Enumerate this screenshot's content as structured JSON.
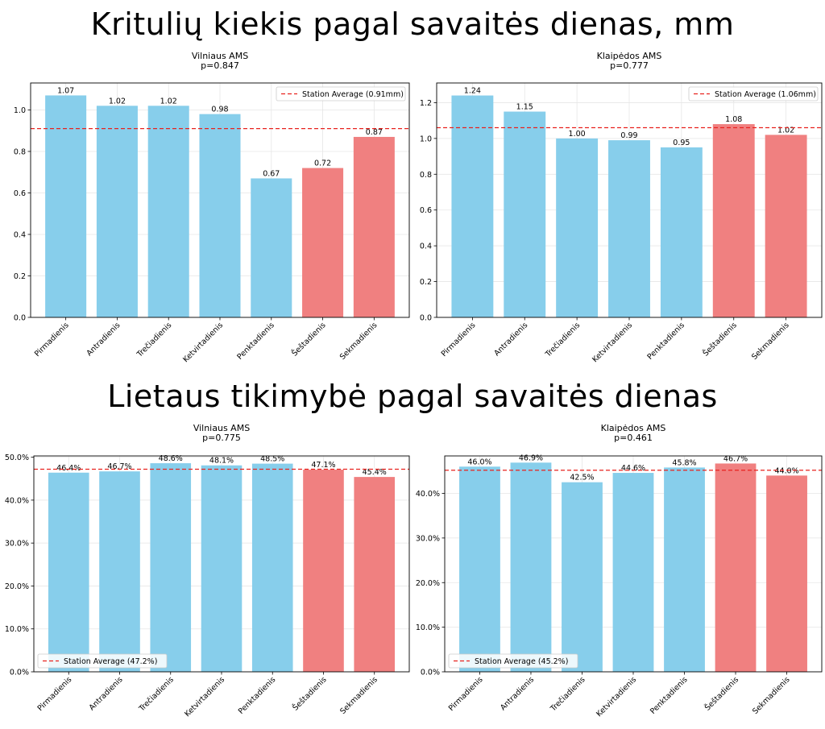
{
  "sections": [
    {
      "title": "Kritulių kiekis pagal savaitės dienas, mm"
    },
    {
      "title": "Lietaus tikimybė pagal savaitės dienas"
    }
  ],
  "colors": {
    "weekday": "#87ceeb",
    "weekend": "#f08080",
    "average_line": "#e8231f"
  },
  "chart_data": [
    {
      "type": "bar",
      "title": "Vilniaus AMS",
      "subtitle": "p=0.847",
      "categories": [
        "Pirmadienis",
        "Antradienis",
        "Trečiadienis",
        "Ketvirtadienis",
        "Penktadienis",
        "Šeštadienis",
        "Sekmadienis"
      ],
      "values": [
        1.07,
        1.02,
        1.02,
        0.98,
        0.67,
        0.72,
        0.87
      ],
      "data_labels": [
        "1.07",
        "1.02",
        "1.02",
        "0.98",
        "0.67",
        "0.72",
        "0.87"
      ],
      "weekend": [
        false,
        false,
        false,
        false,
        false,
        true,
        true
      ],
      "average": 0.91,
      "legend_label": "Station Average (0.91mm)",
      "legend_position": "top-right",
      "ylim": [
        0,
        1.13
      ],
      "yticks": [
        0,
        0.2,
        0.4,
        0.6,
        0.8,
        1.0
      ],
      "ytick_labels": [
        "0.0",
        "0.2",
        "0.4",
        "0.6",
        "0.8",
        "1.0"
      ],
      "grid": true
    },
    {
      "type": "bar",
      "title": "Klaipėdos AMS",
      "subtitle": "p=0.777",
      "categories": [
        "Pirmadienis",
        "Antradienis",
        "Trečiadienis",
        "Ketvirtadienis",
        "Penktadienis",
        "Šeštadienis",
        "Sekmadienis"
      ],
      "values": [
        1.24,
        1.15,
        1.0,
        0.99,
        0.95,
        1.08,
        1.02
      ],
      "data_labels": [
        "1.24",
        "1.15",
        "1.00",
        "0.99",
        "0.95",
        "1.08",
        "1.02"
      ],
      "weekend": [
        false,
        false,
        false,
        false,
        false,
        true,
        true
      ],
      "average": 1.06,
      "legend_label": "Station Average (1.06mm)",
      "legend_position": "top-right",
      "ylim": [
        0,
        1.31
      ],
      "yticks": [
        0,
        0.2,
        0.4,
        0.6,
        0.8,
        1.0,
        1.2
      ],
      "ytick_labels": [
        "0.0",
        "0.2",
        "0.4",
        "0.6",
        "0.8",
        "1.0",
        "1.2"
      ],
      "grid": true
    },
    {
      "type": "bar",
      "title": "Vilniaus AMS",
      "subtitle": "p=0.775",
      "categories": [
        "Pirmadienis",
        "Antradienis",
        "Trečiadienis",
        "Ketvirtadienis",
        "Penktadienis",
        "Šeštadienis",
        "Sekmadienis"
      ],
      "values": [
        46.4,
        46.7,
        48.6,
        48.1,
        48.5,
        47.1,
        45.4
      ],
      "data_labels": [
        "46.4%",
        "46.7%",
        "48.6%",
        "48.1%",
        "48.5%",
        "47.1%",
        "45.4%"
      ],
      "weekend": [
        false,
        false,
        false,
        false,
        false,
        true,
        true
      ],
      "average": 47.2,
      "legend_label": "Station Average (47.2%)",
      "legend_position": "bottom-left",
      "ylim": [
        0,
        50.3
      ],
      "yticks": [
        0,
        10,
        20,
        30,
        40,
        50
      ],
      "ytick_labels": [
        "0.0%",
        "10.0%",
        "20.0%",
        "30.0%",
        "40.0%",
        "50.0%"
      ],
      "grid": true
    },
    {
      "type": "bar",
      "title": "Klaipėdos AMS",
      "subtitle": "p=0.461",
      "categories": [
        "Pirmadienis",
        "Antradienis",
        "Trečiadienis",
        "Ketvirtadienis",
        "Penktadienis",
        "Šeštadienis",
        "Sekmadienis"
      ],
      "values": [
        46.0,
        46.9,
        42.5,
        44.6,
        45.8,
        46.7,
        44.0
      ],
      "data_labels": [
        "46.0%",
        "46.9%",
        "42.5%",
        "44.6%",
        "45.8%",
        "46.7%",
        "44.0%"
      ],
      "weekend": [
        false,
        false,
        false,
        false,
        false,
        true,
        true
      ],
      "average": 45.2,
      "legend_label": "Station Average (45.2%)",
      "legend_position": "bottom-left",
      "ylim": [
        0,
        48.4
      ],
      "yticks": [
        0,
        10,
        20,
        30,
        40
      ],
      "ytick_labels": [
        "0.0%",
        "10.0%",
        "20.0%",
        "30.0%",
        "40.0%"
      ],
      "grid": true
    }
  ]
}
